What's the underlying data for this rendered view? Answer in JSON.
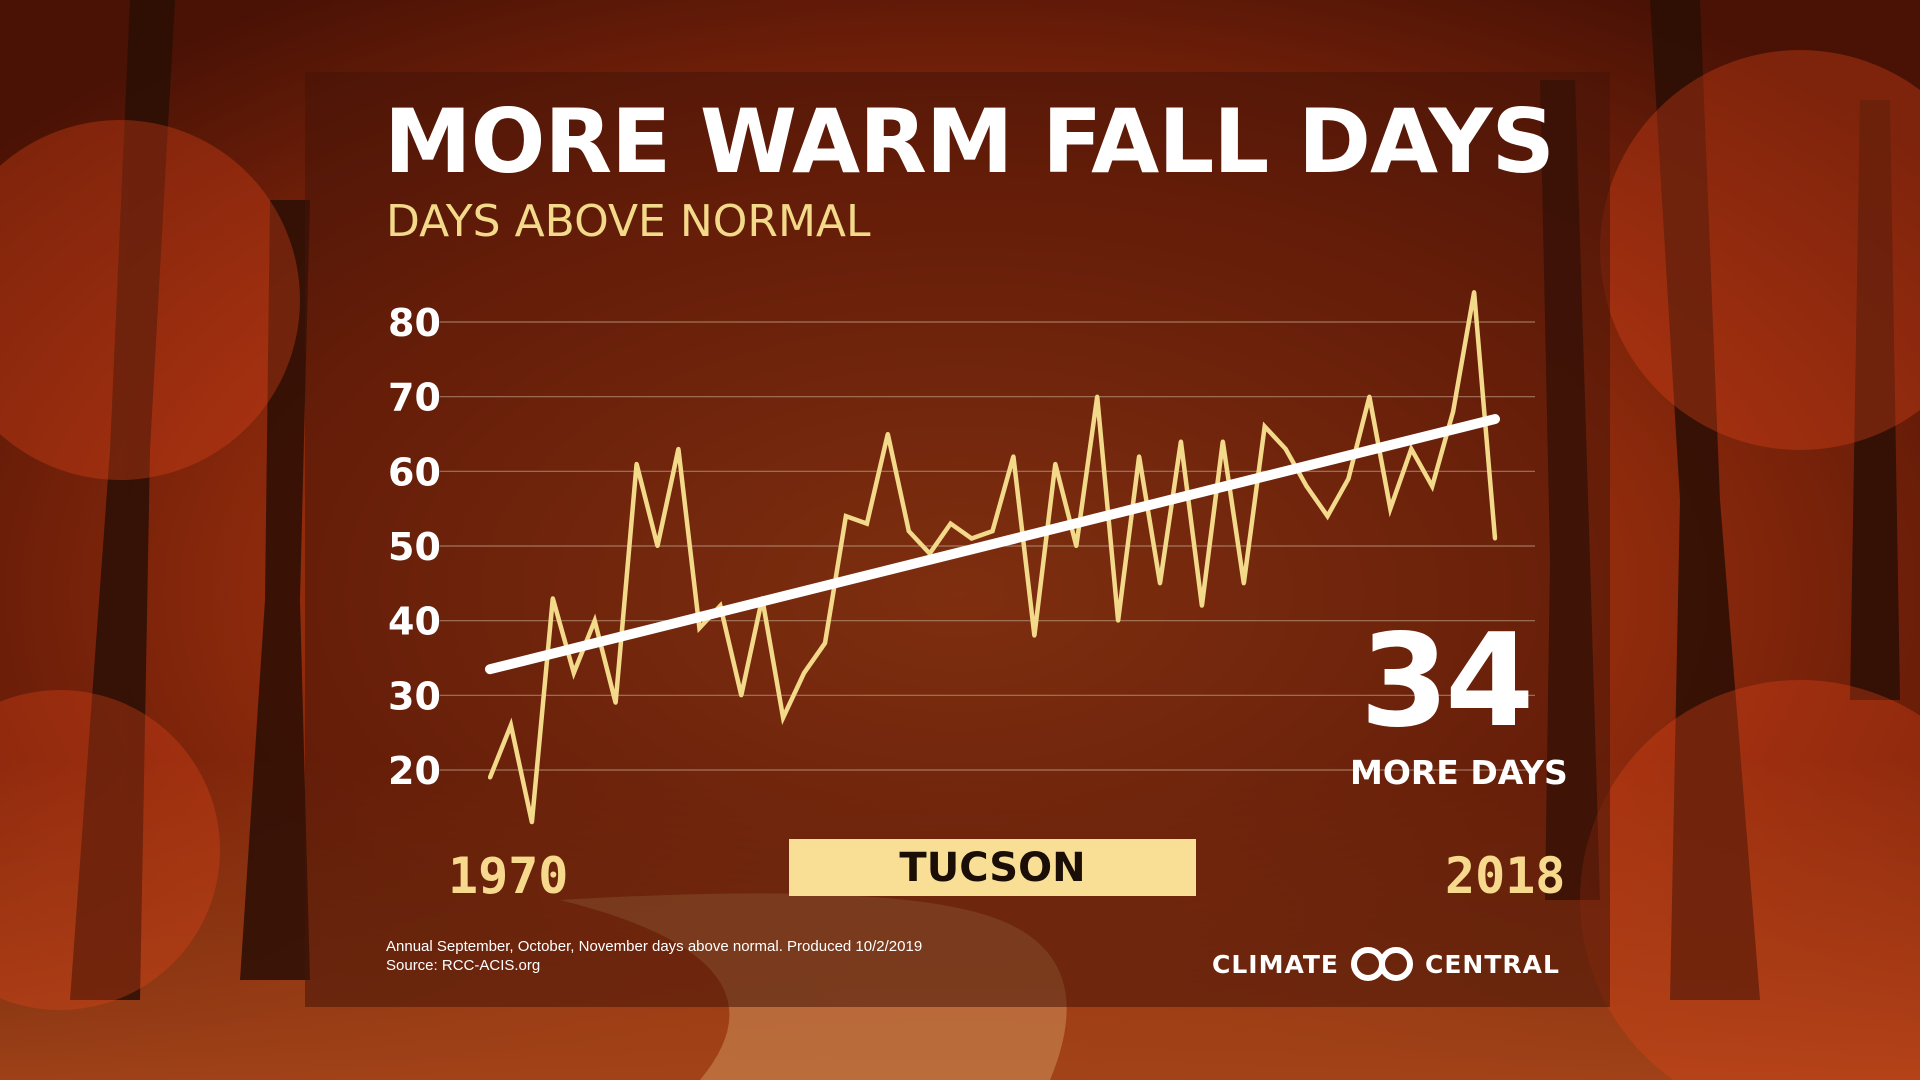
{
  "title": "MORE WARM FALL DAYS",
  "subtitle": "DAYS ABOVE NORMAL",
  "callout": {
    "number": "34",
    "label": "MORE DAYS"
  },
  "location": "TUCSON",
  "footnote": {
    "line1": "Annual September, October, November days above normal. Produced 10/2/2019",
    "line2": "Source: RCC-ACIS.org"
  },
  "logo": {
    "left_text": "CLIMATE",
    "right_text": "CENTRAL"
  },
  "colors": {
    "series": "#f3d98a",
    "trend": "#ffffff",
    "accent": "#f6d98c",
    "gridline": "#b89a80"
  },
  "chart_data": {
    "type": "line",
    "title": "MORE WARM FALL DAYS",
    "subtitle": "DAYS ABOVE NORMAL",
    "xlabel": "",
    "ylabel": "",
    "x_tick_labels": [
      "1970",
      "2018"
    ],
    "y_ticks": [
      20,
      30,
      40,
      50,
      60,
      70,
      80
    ],
    "xlim": [
      1970,
      2018
    ],
    "ylim": [
      15,
      85
    ],
    "grid": true,
    "x": [
      1970,
      1971,
      1972,
      1973,
      1974,
      1975,
      1976,
      1977,
      1978,
      1979,
      1980,
      1981,
      1982,
      1983,
      1984,
      1985,
      1986,
      1987,
      1988,
      1989,
      1990,
      1991,
      1992,
      1993,
      1994,
      1995,
      1996,
      1997,
      1998,
      1999,
      2000,
      2001,
      2002,
      2003,
      2004,
      2005,
      2006,
      2007,
      2008,
      2009,
      2010,
      2011,
      2012,
      2013,
      2014,
      2015,
      2016,
      2017,
      2018
    ],
    "series": [
      {
        "values": [
          19,
          26,
          13,
          43,
          33,
          40,
          29,
          61,
          50,
          63,
          39,
          42,
          30,
          43,
          27,
          33,
          37,
          54,
          53,
          65,
          52,
          49,
          53,
          51,
          52,
          62,
          38,
          61,
          50,
          70,
          40,
          62,
          45,
          64,
          42,
          64,
          45,
          66,
          63,
          58,
          54,
          59,
          70,
          55,
          63,
          58,
          68,
          84,
          51
        ]
      }
    ],
    "trend": {
      "start": [
        1970,
        33.5
      ],
      "end": [
        2018,
        67
      ]
    },
    "annotation": {
      "value": "34",
      "text": "MORE DAYS"
    },
    "location": "TUCSON"
  }
}
